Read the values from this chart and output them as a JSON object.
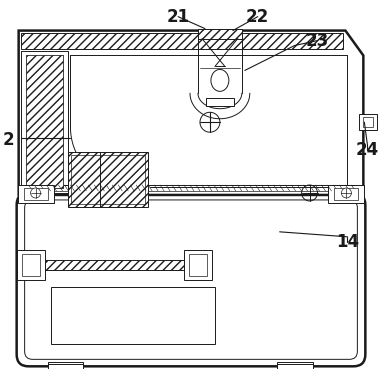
{
  "background_color": "#ffffff",
  "line_color": "#1a1a1a",
  "label_color": "#1a1a1a",
  "label_fontsize": 12,
  "label_fontweight": "bold",
  "fig_w": 3.82,
  "fig_h": 3.7,
  "dpi": 100
}
